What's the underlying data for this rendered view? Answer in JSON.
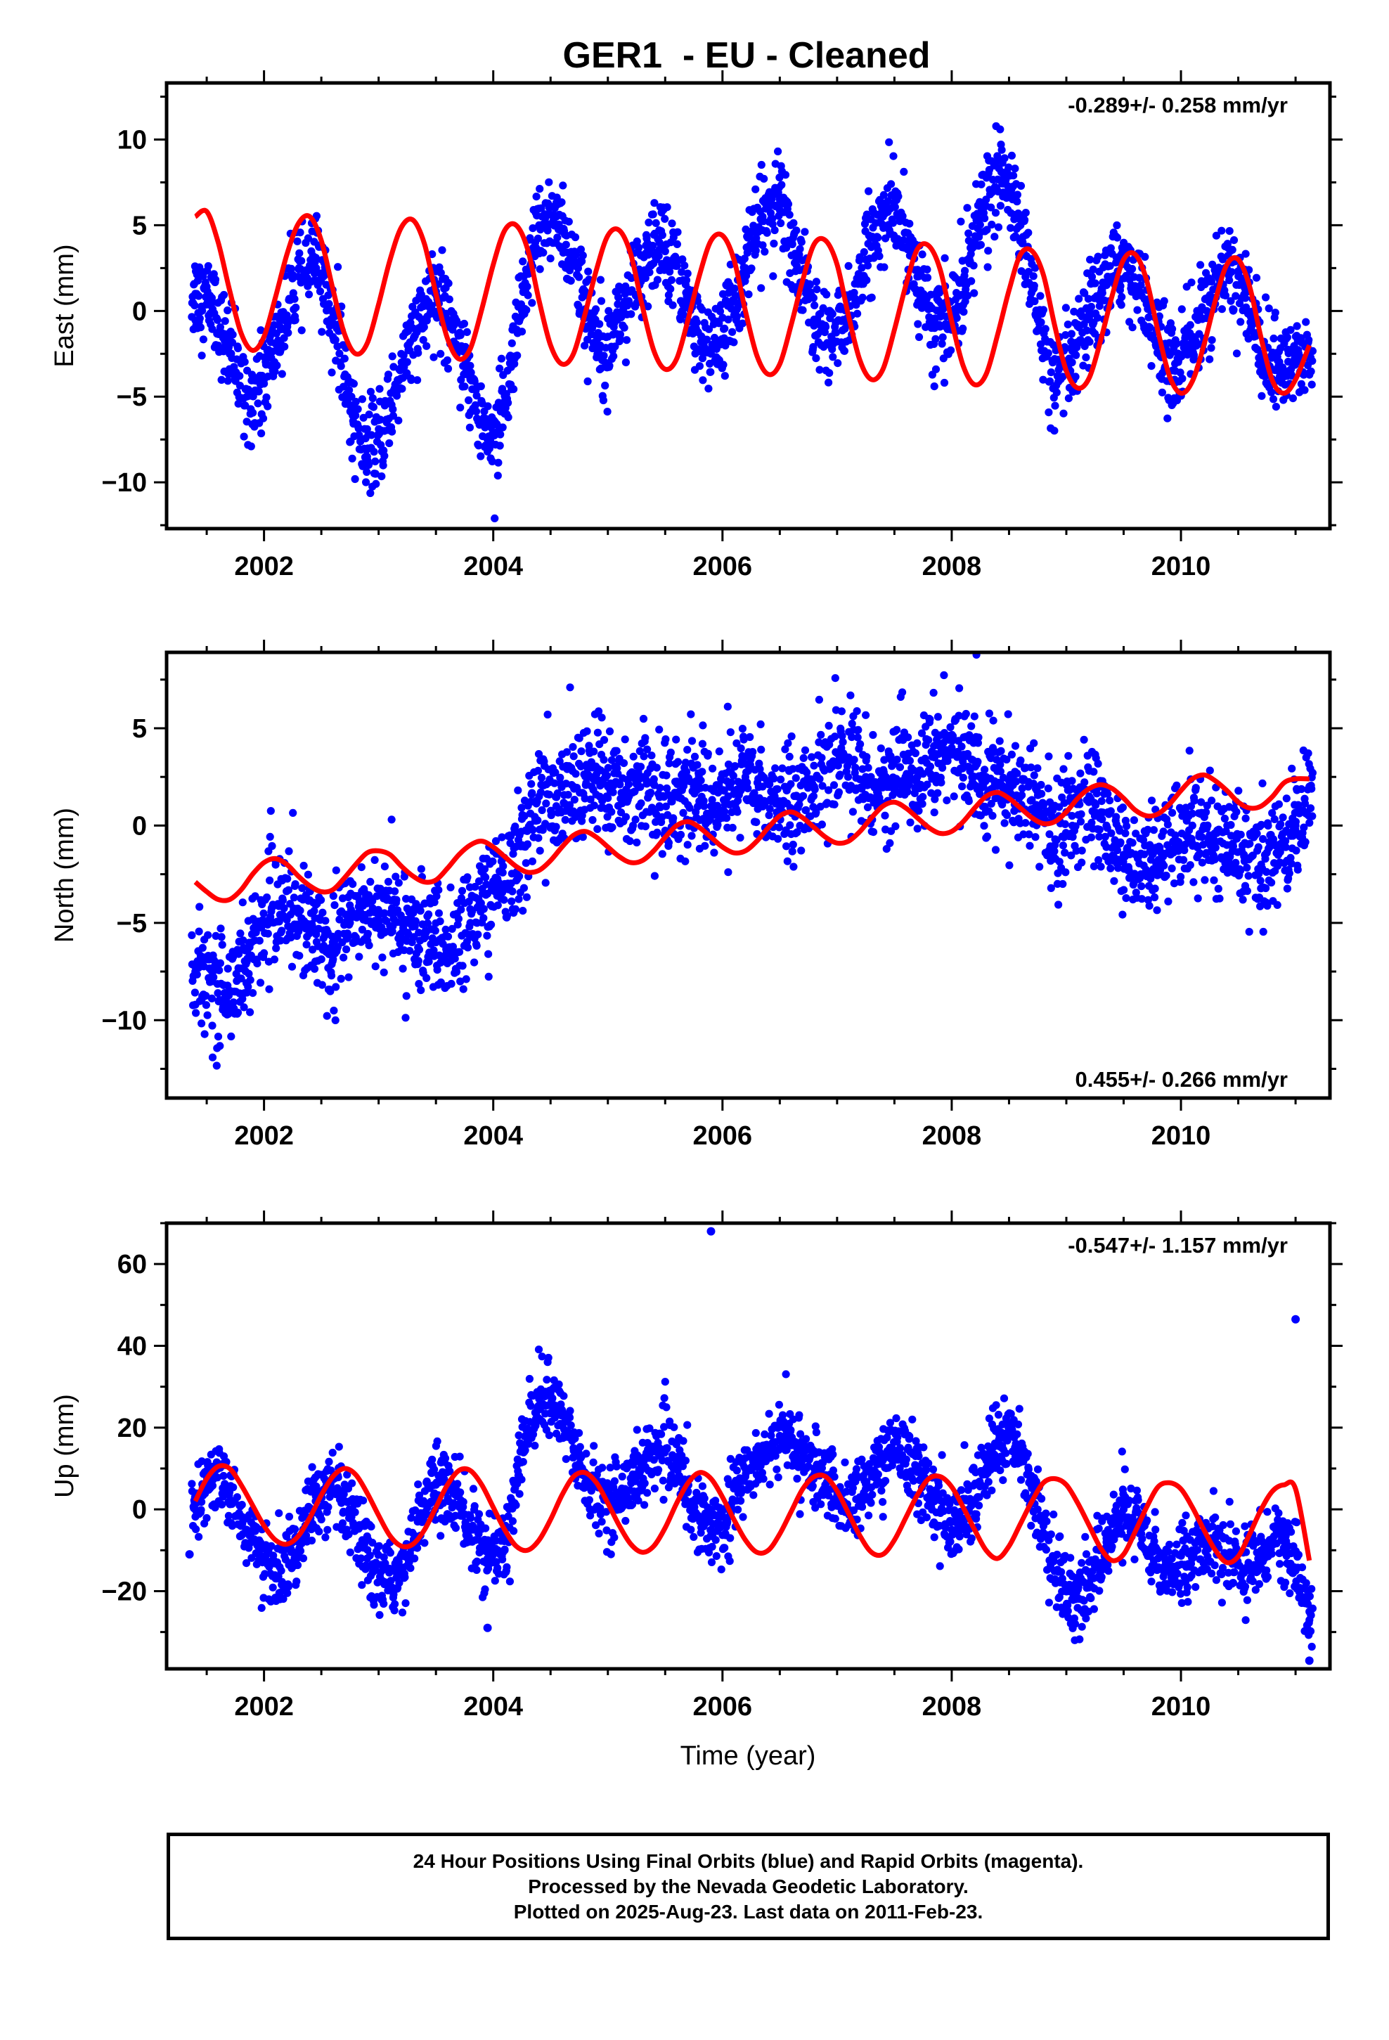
{
  "title": "GER1  - EU - Cleaned",
  "xlabel": "Time (year)",
  "x_ticks": [
    "2002",
    "2004",
    "2006",
    "2008",
    "2010"
  ],
  "colors": {
    "data_points": "#0000ff",
    "model_curve": "#ff0000",
    "axes": "#000000"
  },
  "chart_data": [
    {
      "type": "scatter",
      "ylabel": "East (mm)",
      "rate_text": "-0.289+/- 0.258 mm/yr",
      "rate_position": "top-right",
      "xlim": [
        2001.15,
        2011.3
      ],
      "ylim": [
        -12.7,
        13.3
      ],
      "y_ticks": [
        10,
        5,
        0,
        -5,
        -10
      ],
      "y_tick_labels": [
        "10",
        "5",
        "0",
        "−5",
        "−10"
      ],
      "scatter_series": {
        "x": [
          2001.4,
          2001.55,
          2001.7,
          2001.85,
          2002.0,
          2002.15,
          2002.3,
          2002.45,
          2002.6,
          2002.75,
          2002.9,
          2003.05,
          2003.2,
          2003.35,
          2003.5,
          2003.65,
          2003.8,
          2003.95,
          2004.1,
          2004.25,
          2004.4,
          2004.55,
          2004.7,
          2004.85,
          2005.0,
          2005.15,
          2005.3,
          2005.45,
          2005.6,
          2005.75,
          2005.9,
          2006.05,
          2006.2,
          2006.35,
          2006.5,
          2006.65,
          2006.8,
          2006.95,
          2007.1,
          2007.25,
          2007.4,
          2007.55,
          2007.7,
          2007.85,
          2008.0,
          2008.15,
          2008.3,
          2008.45,
          2008.6,
          2008.75,
          2008.9,
          2009.05,
          2009.2,
          2009.35,
          2009.5,
          2009.65,
          2009.8,
          2009.95,
          2010.1,
          2010.25,
          2010.4,
          2010.55,
          2010.7,
          2010.85,
          2011.0,
          2011.12
        ],
        "y": [
          1.0,
          0.5,
          -2.5,
          -5.0,
          -4.0,
          -1.0,
          2.0,
          3.0,
          0.0,
          -5.5,
          -8.5,
          -7.0,
          -3.0,
          -1.0,
          1.0,
          -0.5,
          -4.0,
          -7.5,
          -6.0,
          0.0,
          5.0,
          5.5,
          3.0,
          -1.0,
          -1.5,
          0.5,
          2.0,
          4.0,
          3.0,
          -1.0,
          -2.5,
          -0.5,
          2.5,
          5.5,
          6.5,
          3.0,
          -0.5,
          -1.5,
          -0.5,
          3.0,
          5.5,
          5.5,
          2.0,
          -1.0,
          -0.5,
          3.0,
          6.5,
          8.0,
          5.0,
          -0.5,
          -4.5,
          -3.0,
          -0.5,
          1.5,
          3.0,
          1.5,
          -2.0,
          -3.5,
          -1.5,
          0.5,
          2.5,
          1.5,
          -2.5,
          -3.5,
          -3.0,
          -2.5
        ]
      },
      "model_series": {
        "x": [
          2001.4,
          2001.5,
          2001.6,
          2001.7,
          2001.8,
          2001.9,
          2002.0,
          2002.1,
          2002.2,
          2002.3,
          2002.4,
          2002.5,
          2002.6,
          2002.7,
          2002.8,
          2002.9,
          2003.0,
          2003.1,
          2003.2,
          2003.3,
          2003.4,
          2003.5,
          2003.6,
          2003.7,
          2003.8,
          2003.9,
          2004.0,
          2004.1,
          2004.2,
          2004.3,
          2004.4,
          2004.5,
          2004.6,
          2004.7,
          2004.8,
          2004.9,
          2005.0,
          2005.1,
          2005.2,
          2005.3,
          2005.4,
          2005.5,
          2005.6,
          2005.7,
          2005.8,
          2005.9,
          2006.0,
          2006.1,
          2006.2,
          2006.3,
          2006.4,
          2006.5,
          2006.6,
          2006.7,
          2006.8,
          2006.9,
          2007.0,
          2007.1,
          2007.2,
          2007.3,
          2007.4,
          2007.5,
          2007.6,
          2007.7,
          2007.8,
          2007.9,
          2008.0,
          2008.1,
          2008.2,
          2008.3,
          2008.4,
          2008.5,
          2008.6,
          2008.7,
          2008.8,
          2008.9,
          2009.0,
          2009.1,
          2009.2,
          2009.3,
          2009.4,
          2009.5,
          2009.6,
          2009.7,
          2009.8,
          2009.9,
          2010.0,
          2010.1,
          2010.2,
          2010.3,
          2010.4,
          2010.5,
          2010.6,
          2010.7,
          2010.8,
          2010.9,
          2011.0,
          2011.12
        ],
        "y": [
          5.5,
          5.8,
          4.0,
          1.2,
          -1.3,
          -2.3,
          -1.5,
          0.8,
          3.3,
          5.1,
          5.5,
          4.1,
          1.3,
          -1.3,
          -2.5,
          -1.9,
          0.4,
          3.0,
          4.9,
          5.3,
          3.9,
          1.0,
          -1.6,
          -2.8,
          -2.2,
          0.1,
          2.7,
          4.7,
          5.0,
          3.6,
          0.6,
          -2.0,
          -3.1,
          -2.5,
          -0.2,
          2.4,
          4.4,
          4.7,
          3.3,
          0.3,
          -2.3,
          -3.4,
          -2.8,
          -0.5,
          2.1,
          4.1,
          4.4,
          3.0,
          0.0,
          -2.6,
          -3.7,
          -3.1,
          -0.8,
          1.8,
          3.9,
          4.1,
          2.7,
          -0.3,
          -2.9,
          -4.0,
          -3.4,
          -1.1,
          1.5,
          3.6,
          3.8,
          2.4,
          -0.6,
          -3.2,
          -4.3,
          -3.7,
          -1.4,
          1.2,
          3.3,
          3.5,
          2.1,
          -0.9,
          -3.5,
          -4.5,
          -3.9,
          -1.7,
          0.9,
          3.0,
          3.3,
          1.8,
          -1.2,
          -3.8,
          -4.8,
          -4.1,
          -2.0,
          0.6,
          2.7,
          3.0,
          1.4,
          -1.6,
          -4.1,
          -4.8,
          -4.0,
          -2.0
        ]
      }
    },
    {
      "type": "scatter",
      "ylabel": "North (mm)",
      "rate_text": "0.455+/- 0.266 mm/yr",
      "rate_position": "bottom-right",
      "xlim": [
        2001.15,
        2011.3
      ],
      "ylim": [
        -14.0,
        8.9
      ],
      "y_ticks": [
        5,
        0,
        -5,
        -10
      ],
      "y_tick_labels": [
        "5",
        "0",
        "−5",
        "−10"
      ],
      "scatter_series": {
        "x": [
          2001.4,
          2001.55,
          2001.7,
          2001.85,
          2002.0,
          2002.15,
          2002.3,
          2002.45,
          2002.6,
          2002.75,
          2002.9,
          2003.05,
          2003.2,
          2003.35,
          2003.5,
          2003.65,
          2003.8,
          2003.95,
          2004.1,
          2004.25,
          2004.4,
          2004.55,
          2004.7,
          2004.85,
          2005.0,
          2005.15,
          2005.3,
          2005.45,
          2005.6,
          2005.75,
          2005.9,
          2006.05,
          2006.2,
          2006.35,
          2006.5,
          2006.65,
          2006.8,
          2006.95,
          2007.1,
          2007.25,
          2007.4,
          2007.55,
          2007.7,
          2007.85,
          2008.0,
          2008.15,
          2008.3,
          2008.45,
          2008.6,
          2008.75,
          2008.9,
          2009.05,
          2009.2,
          2009.35,
          2009.5,
          2009.65,
          2009.8,
          2009.95,
          2010.1,
          2010.25,
          2010.4,
          2010.55,
          2010.7,
          2010.85,
          2011.0,
          2011.12
        ],
        "y": [
          -7.5,
          -8.0,
          -8.5,
          -7.0,
          -5.0,
          -4.0,
          -4.5,
          -5.5,
          -6.0,
          -5.0,
          -4.0,
          -4.5,
          -5.0,
          -5.5,
          -6.0,
          -6.5,
          -5.0,
          -3.5,
          -3.0,
          -1.0,
          1.5,
          1.0,
          2.0,
          2.5,
          2.0,
          1.5,
          2.5,
          1.0,
          1.5,
          2.0,
          1.0,
          1.5,
          2.5,
          2.0,
          1.0,
          1.5,
          2.0,
          3.0,
          3.5,
          2.5,
          2.0,
          3.0,
          2.5,
          3.5,
          4.0,
          3.0,
          2.5,
          2.0,
          1.5,
          1.0,
          -1.0,
          0.5,
          1.5,
          0.0,
          -1.5,
          -2.5,
          -2.0,
          -0.5,
          0.0,
          -0.5,
          -1.0,
          -1.5,
          -2.0,
          -1.0,
          0.0,
          2.0
        ]
      },
      "model_series": {
        "x": [
          2001.4,
          2001.5,
          2001.6,
          2001.7,
          2001.8,
          2001.9,
          2002.0,
          2002.1,
          2002.2,
          2002.3,
          2002.4,
          2002.5,
          2002.6,
          2002.7,
          2002.8,
          2002.9,
          2003.0,
          2003.1,
          2003.2,
          2003.3,
          2003.4,
          2003.5,
          2003.6,
          2003.7,
          2003.8,
          2003.9,
          2004.0,
          2004.1,
          2004.2,
          2004.3,
          2004.4,
          2004.5,
          2004.6,
          2004.7,
          2004.8,
          2004.9,
          2005.0,
          2005.1,
          2005.2,
          2005.3,
          2005.4,
          2005.5,
          2005.6,
          2005.7,
          2005.8,
          2005.9,
          2006.0,
          2006.1,
          2006.2,
          2006.3,
          2006.4,
          2006.5,
          2006.6,
          2006.7,
          2006.8,
          2006.9,
          2007.0,
          2007.1,
          2007.2,
          2007.3,
          2007.4,
          2007.5,
          2007.6,
          2007.7,
          2007.8,
          2007.9,
          2008.0,
          2008.1,
          2008.2,
          2008.3,
          2008.4,
          2008.5,
          2008.6,
          2008.7,
          2008.8,
          2008.9,
          2009.0,
          2009.1,
          2009.2,
          2009.3,
          2009.4,
          2009.5,
          2009.6,
          2009.7,
          2009.8,
          2009.9,
          2010.0,
          2010.1,
          2010.2,
          2010.3,
          2010.4,
          2010.5,
          2010.6,
          2010.7,
          2010.8,
          2010.9,
          2011.0,
          2011.12
        ],
        "y": [
          -2.9,
          -3.4,
          -3.8,
          -3.8,
          -3.3,
          -2.5,
          -1.9,
          -1.7,
          -2.0,
          -2.6,
          -3.1,
          -3.4,
          -3.3,
          -2.7,
          -2.0,
          -1.4,
          -1.3,
          -1.5,
          -2.1,
          -2.6,
          -2.9,
          -2.8,
          -2.2,
          -1.5,
          -1.0,
          -0.8,
          -1.1,
          -1.6,
          -2.1,
          -2.4,
          -2.3,
          -1.8,
          -1.1,
          -0.5,
          -0.3,
          -0.6,
          -1.1,
          -1.6,
          -1.9,
          -1.8,
          -1.3,
          -0.6,
          0.0,
          0.2,
          -0.1,
          -0.6,
          -1.1,
          -1.4,
          -1.3,
          -0.8,
          -0.1,
          0.5,
          0.7,
          0.4,
          -0.1,
          -0.6,
          -0.9,
          -0.8,
          -0.3,
          0.4,
          1.0,
          1.2,
          0.9,
          0.4,
          -0.1,
          -0.4,
          -0.3,
          0.2,
          0.9,
          1.5,
          1.7,
          1.4,
          0.9,
          0.4,
          0.1,
          0.2,
          0.7,
          1.4,
          1.9,
          2.1,
          1.9,
          1.4,
          0.8,
          0.5,
          0.6,
          1.1,
          1.8,
          2.4,
          2.6,
          2.3,
          1.8,
          1.2,
          0.9,
          1.0,
          1.5,
          2.2,
          2.4,
          2.4
        ]
      }
    },
    {
      "type": "scatter",
      "ylabel": "Up (mm)",
      "rate_text": "-0.547+/- 1.157 mm/yr",
      "rate_position": "top-right",
      "xlim": [
        2001.15,
        2011.3
      ],
      "ylim": [
        -39.0,
        70.0
      ],
      "y_ticks": [
        60,
        40,
        20,
        0,
        -20
      ],
      "y_tick_labels": [
        "60",
        "40",
        "20",
        "0",
        "−20"
      ],
      "scatter_series": {
        "x": [
          2001.4,
          2001.55,
          2001.7,
          2001.85,
          2002.0,
          2002.15,
          2002.3,
          2002.45,
          2002.6,
          2002.75,
          2002.9,
          2003.05,
          2003.2,
          2003.35,
          2003.5,
          2003.65,
          2003.8,
          2003.95,
          2004.1,
          2004.25,
          2004.4,
          2004.55,
          2004.7,
          2004.85,
          2005.0,
          2005.15,
          2005.3,
          2005.45,
          2005.6,
          2005.75,
          2005.9,
          2006.05,
          2006.2,
          2006.35,
          2006.5,
          2006.65,
          2006.8,
          2006.95,
          2007.1,
          2007.25,
          2007.4,
          2007.55,
          2007.7,
          2007.85,
          2008.0,
          2008.15,
          2008.3,
          2008.45,
          2008.6,
          2008.75,
          2008.9,
          2009.05,
          2009.2,
          2009.35,
          2009.5,
          2009.65,
          2009.8,
          2009.95,
          2010.1,
          2010.25,
          2010.4,
          2010.55,
          2010.7,
          2010.85,
          2011.0,
          2011.12
        ],
        "y": [
          0.0,
          8.0,
          5.0,
          -5.0,
          -12.0,
          -15.0,
          -8.0,
          2.0,
          5.0,
          -2.0,
          -12.0,
          -18.0,
          -15.0,
          -2.0,
          6.0,
          4.0,
          -5.0,
          -12.0,
          -10.0,
          15.0,
          27.0,
          25.0,
          15.0,
          5.0,
          2.0,
          5.0,
          10.0,
          15.0,
          12.0,
          0.0,
          -5.0,
          0.0,
          8.0,
          14.0,
          18.0,
          15.0,
          10.0,
          5.0,
          0.0,
          5.0,
          12.0,
          15.0,
          10.0,
          2.0,
          -5.0,
          0.0,
          10.0,
          18.0,
          15.0,
          0.0,
          -15.0,
          -22.0,
          -18.0,
          -8.0,
          0.0,
          -5.0,
          -12.0,
          -15.0,
          -10.0,
          -8.0,
          -12.0,
          -15.0,
          -10.0,
          -5.0,
          -15.0,
          -25.0
        ]
      },
      "outliers": {
        "x": [
          2005.9,
          2011.0,
          2001.35,
          2003.95,
          2011.12
        ],
        "y": [
          68.0,
          46.5,
          -11.0,
          -29.0,
          -37.0
        ]
      },
      "model_series": {
        "x": [
          2001.4,
          2001.5,
          2001.6,
          2001.7,
          2001.8,
          2001.9,
          2002.0,
          2002.1,
          2002.2,
          2002.3,
          2002.4,
          2002.5,
          2002.6,
          2002.7,
          2002.8,
          2002.9,
          2003.0,
          2003.1,
          2003.2,
          2003.3,
          2003.4,
          2003.5,
          2003.6,
          2003.7,
          2003.8,
          2003.9,
          2004.0,
          2004.1,
          2004.2,
          2004.3,
          2004.4,
          2004.5,
          2004.6,
          2004.7,
          2004.8,
          2004.9,
          2005.0,
          2005.1,
          2005.2,
          2005.3,
          2005.4,
          2005.5,
          2005.6,
          2005.7,
          2005.8,
          2005.9,
          2006.0,
          2006.1,
          2006.2,
          2006.3,
          2006.4,
          2006.5,
          2006.6,
          2006.7,
          2006.8,
          2006.9,
          2007.0,
          2007.1,
          2007.2,
          2007.3,
          2007.4,
          2007.5,
          2007.6,
          2007.7,
          2007.8,
          2007.9,
          2008.0,
          2008.1,
          2008.2,
          2008.3,
          2008.4,
          2008.5,
          2008.6,
          2008.7,
          2008.8,
          2008.9,
          2009.0,
          2009.1,
          2009.2,
          2009.3,
          2009.4,
          2009.5,
          2009.6,
          2009.7,
          2009.8,
          2009.9,
          2010.0,
          2010.1,
          2010.2,
          2010.3,
          2010.4,
          2010.5,
          2010.6,
          2010.7,
          2010.8,
          2010.9,
          2011.0,
          2011.12
        ],
        "y": [
          2.0,
          7.5,
          10.5,
          10.0,
          6.0,
          1.0,
          -4.0,
          -7.5,
          -8.5,
          -6.5,
          -2.0,
          3.5,
          8.0,
          10.0,
          8.5,
          4.0,
          -1.5,
          -6.5,
          -9.0,
          -8.5,
          -5.0,
          0.5,
          6.0,
          9.5,
          9.5,
          6.0,
          0.5,
          -5.0,
          -9.0,
          -10.0,
          -7.5,
          -2.5,
          3.5,
          8.0,
          9.0,
          6.5,
          1.5,
          -4.0,
          -8.5,
          -10.5,
          -9.0,
          -4.5,
          1.5,
          6.5,
          9.0,
          7.5,
          3.0,
          -2.5,
          -7.5,
          -10.5,
          -10.0,
          -6.0,
          -0.5,
          5.0,
          8.0,
          8.0,
          4.5,
          -1.0,
          -6.5,
          -10.5,
          -11.0,
          -7.5,
          -2.0,
          3.5,
          7.5,
          8.0,
          5.5,
          0.5,
          -5.0,
          -10.0,
          -12.0,
          -9.0,
          -3.5,
          2.0,
          6.5,
          7.5,
          6.0,
          1.5,
          -4.0,
          -9.5,
          -12.5,
          -11.0,
          -5.5,
          0.5,
          5.5,
          6.5,
          5.0,
          0.5,
          -5.0,
          -10.0,
          -13.0,
          -11.5,
          -6.0,
          0.0,
          4.5,
          6.0,
          5.0,
          -12.5
        ]
      }
    }
  ],
  "footer": {
    "line1": "24 Hour Positions Using Final Orbits (blue) and Rapid Orbits (magenta).",
    "line2": "Processed by the Nevada Geodetic Laboratory.",
    "line3": "Plotted on 2025-Aug-23. Last data on 2011-Feb-23."
  }
}
